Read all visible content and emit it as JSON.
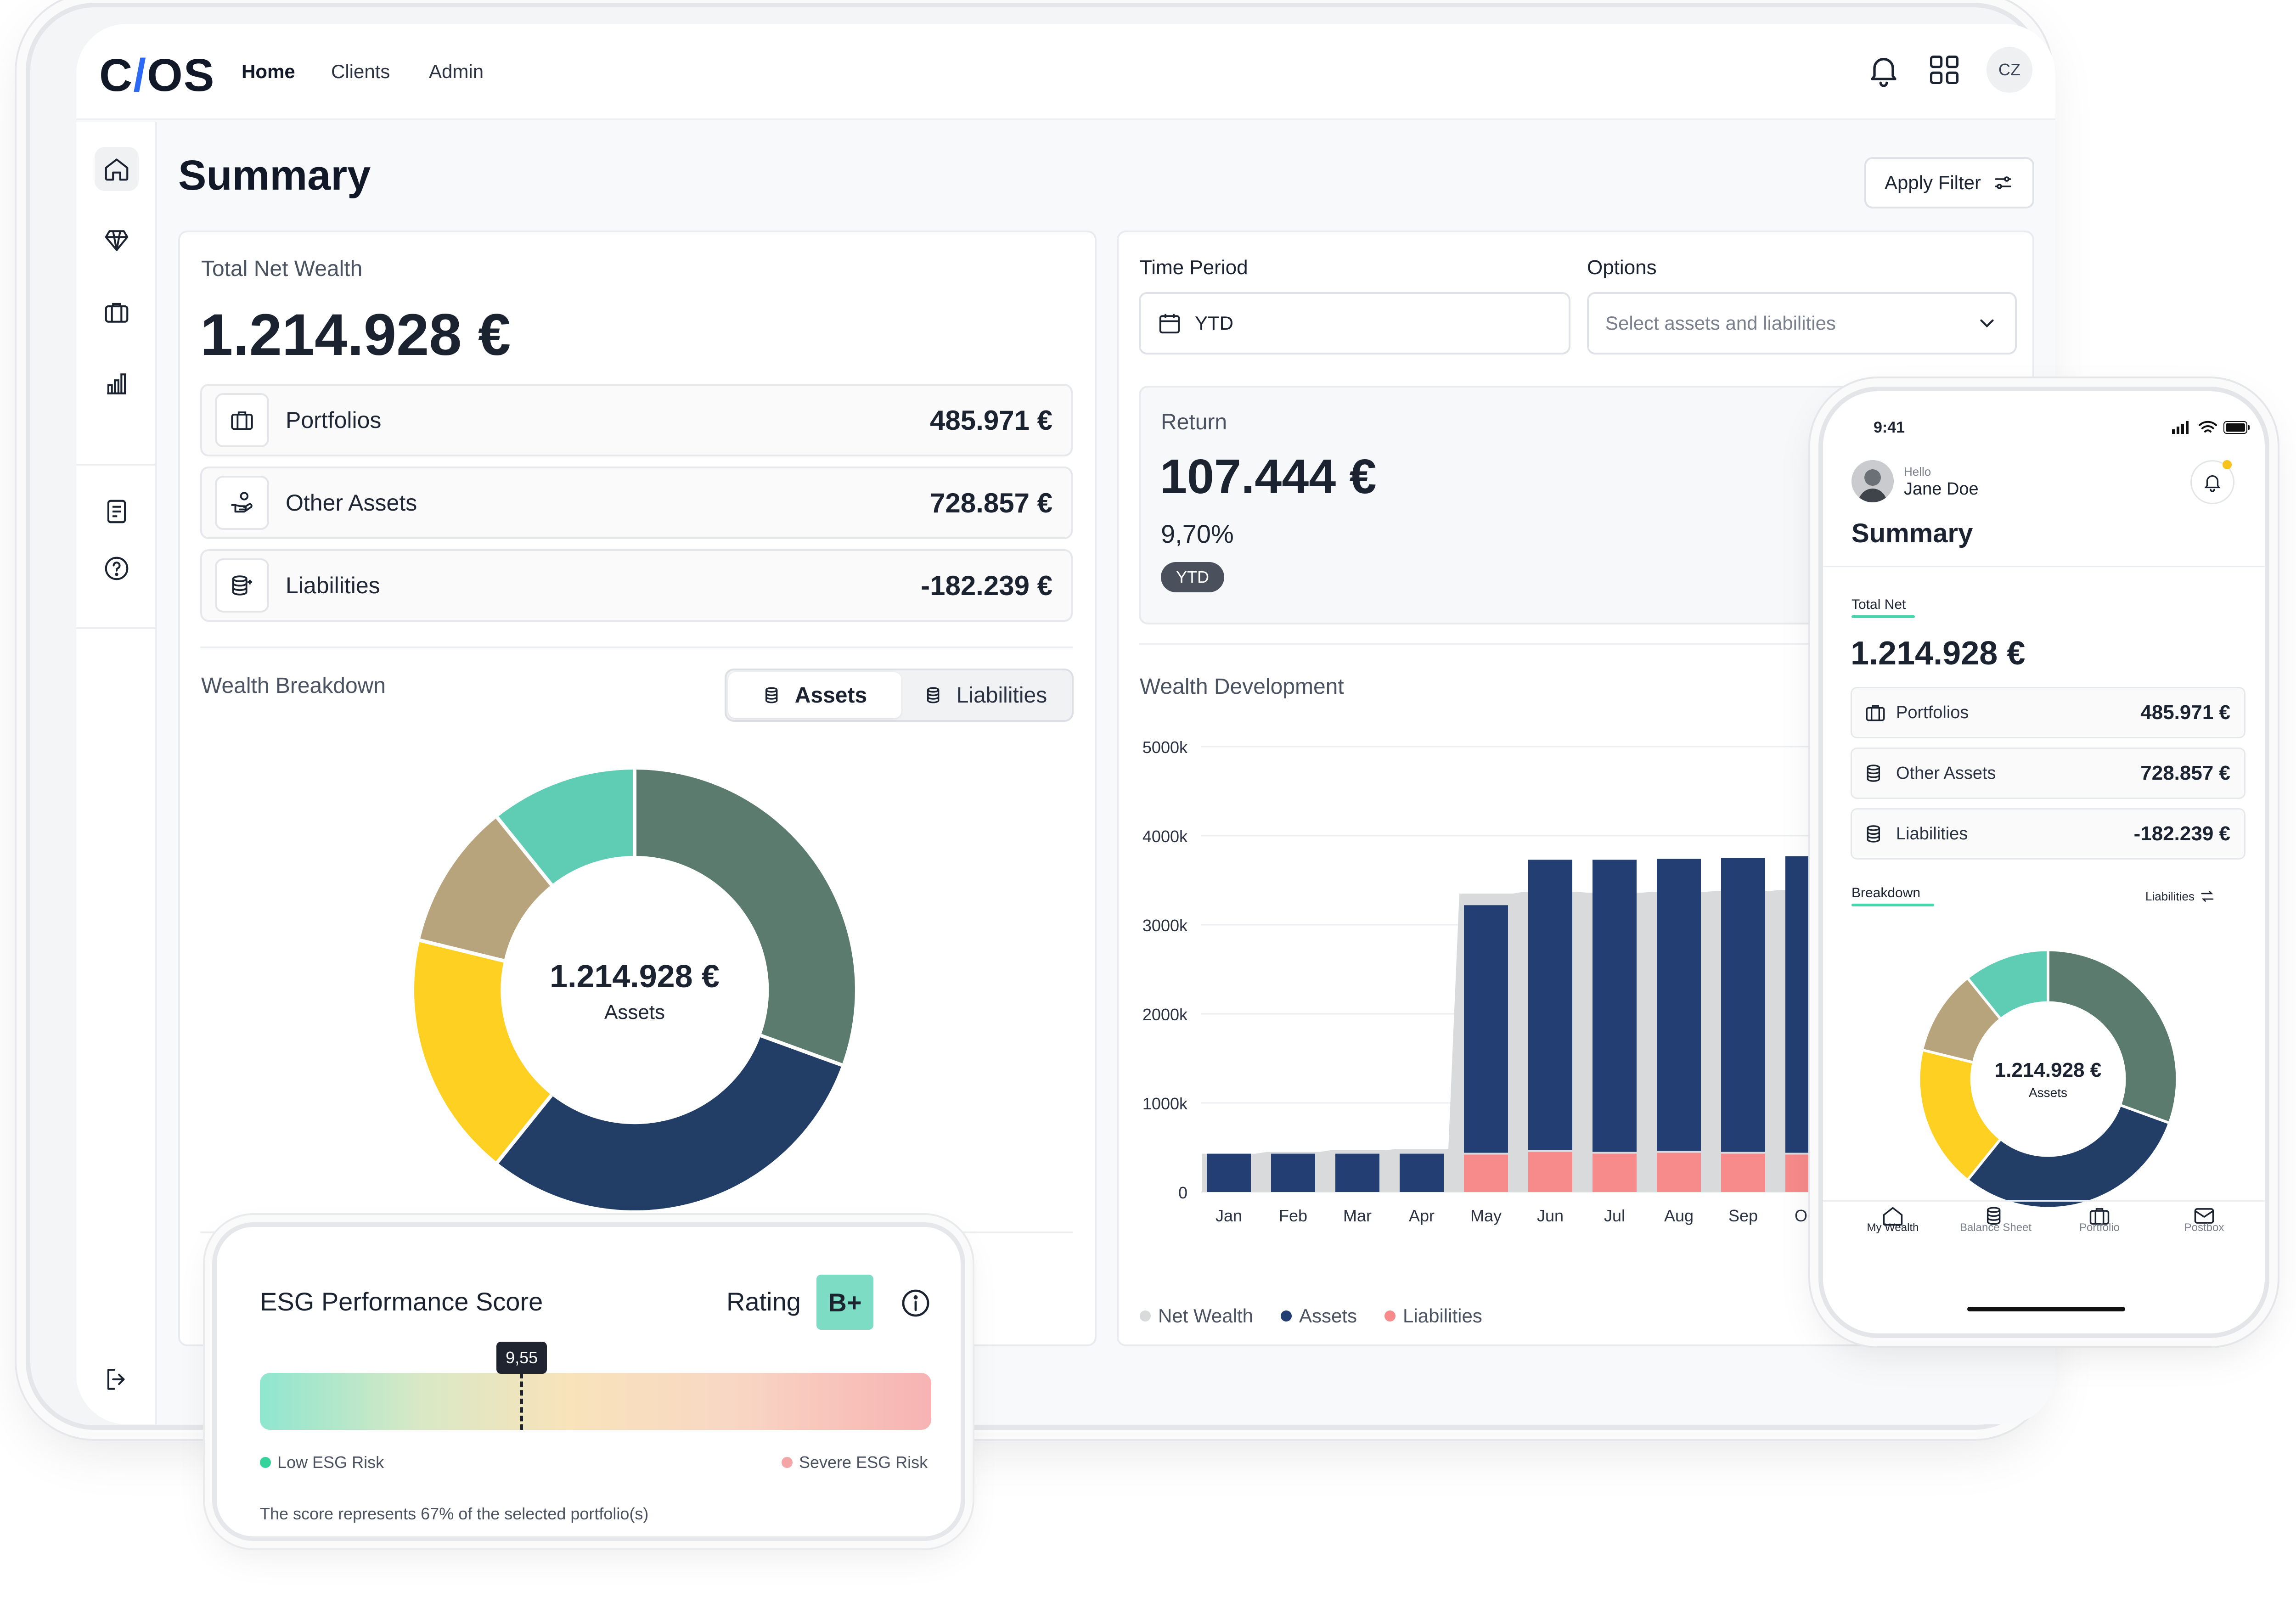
{
  "app": {
    "logo_left": "C",
    "logo_slash": "/",
    "logo_right": "OS",
    "nav": [
      "Home",
      "Clients",
      "Admin"
    ],
    "user_initials": "CZ"
  },
  "summary": {
    "title": "Summary",
    "filter_button": "Apply Filter"
  },
  "net_wealth": {
    "label": "Total Net Wealth",
    "value": "1.214.928 €",
    "rows": [
      {
        "name": "Portfolios",
        "value": "485.971 €"
      },
      {
        "name": "Other Assets",
        "value": "728.857 €"
      },
      {
        "name": "Liabilities",
        "value": "-182.239 €"
      }
    ]
  },
  "breakdown": {
    "label": "Wealth Breakdown",
    "toggle": [
      "Assets",
      "Liabilities"
    ],
    "center_value": "1.214.928 €",
    "center_label": "Assets",
    "colors": [
      "#5b7b6e",
      "#233e66",
      "#fdd022",
      "#b7a47d",
      "#5fcdb4"
    ]
  },
  "filters": {
    "time_period_label": "Time Period",
    "time_period_value": "YTD",
    "options_label": "Options",
    "options_placeholder": "Select assets and liabilities"
  },
  "return_card": {
    "label": "Return",
    "value": "107.444 €",
    "percent": "9,70%",
    "badge": "YTD"
  },
  "development": {
    "label": "Wealth Development",
    "legend": [
      "Net Wealth",
      "Assets",
      "Liabilities"
    ]
  },
  "chart_data": {
    "type": "bar",
    "title": "Wealth Development",
    "categories": [
      "Jan",
      "Feb",
      "Mar",
      "Apr",
      "May",
      "Jun",
      "Jul",
      "Aug",
      "Sep",
      "Oct"
    ],
    "y_ticks": [
      "5000k",
      "4000k",
      "3000k",
      "2000k",
      "1000k",
      "0"
    ],
    "ylim": [
      0,
      5000
    ],
    "series": [
      {
        "name": "Net Wealth",
        "type": "area",
        "color": "#d9dadc",
        "values": [
          430,
          450,
          470,
          480,
          3350,
          3370,
          3360,
          3370,
          3380,
          3390
        ]
      },
      {
        "name": "Assets",
        "color": "#233e72",
        "values": [
          430,
          430,
          430,
          430,
          2800,
          3280,
          3300,
          3300,
          3320,
          3350
        ]
      },
      {
        "name": "Liabilities",
        "color": "#f78a8a",
        "values": [
          0,
          0,
          0,
          0,
          420,
          450,
          430,
          440,
          430,
          420
        ]
      }
    ],
    "legend_position": "bottom-left"
  },
  "esg": {
    "title": "ESG Performance Score",
    "rating_label": "Rating",
    "rating": "B+",
    "score": "9,55",
    "score_fraction": 0.39,
    "low_label": "Low ESG Risk",
    "high_label": "Severe ESG Risk",
    "footnote": "The score represents 67% of the selected portfolio(s)"
  },
  "phone": {
    "time": "9:41",
    "greeting": "Hello",
    "user": "Jane Doe",
    "title": "Summary",
    "tab_total": "Total Net",
    "total_value": "1.214.928 €",
    "rows": [
      {
        "name": "Portfolios",
        "value": "485.971 €"
      },
      {
        "name": "Other Assets",
        "value": "728.857 €"
      },
      {
        "name": "Liabilities",
        "value": "-182.239 €"
      }
    ],
    "breakdown_tab": "Breakdown",
    "liabilities_link": "Liabilities",
    "center_value": "1.214.928 €",
    "center_label": "Assets",
    "tabs": [
      "My Wealth",
      "Balance Sheet",
      "Portfolio",
      "Postbox"
    ]
  }
}
